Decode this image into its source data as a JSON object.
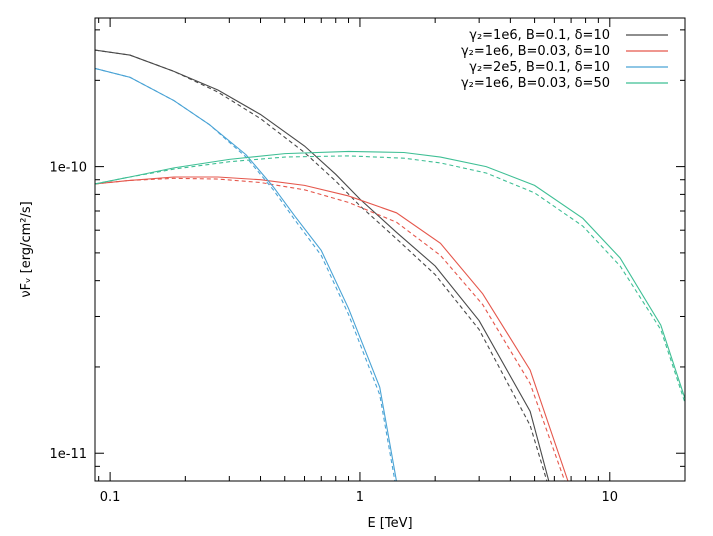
{
  "chart_data": {
    "type": "line",
    "title": "",
    "xlabel": "E [TeV]",
    "ylabel": "νFᵥ [erg/cm²/s]",
    "x_scale": "log",
    "y_scale": "log",
    "xlim": [
      0.087,
      20
    ],
    "ylim": [
      8e-12,
      3.3e-10
    ],
    "x_ticks": [
      {
        "value": 0.1,
        "label": "0.1"
      },
      {
        "value": 1,
        "label": "1"
      },
      {
        "value": 10,
        "label": "10"
      }
    ],
    "y_ticks": [
      {
        "value": 1e-10,
        "label": "1e-10"
      },
      {
        "value": 1e-11,
        "label": "1e-11"
      }
    ],
    "grid": false,
    "legend_position": "top-right",
    "series": [
      {
        "name": "γ₂=1e6, B=0.1, δ=10",
        "color": "#4a4a4a",
        "solid": [
          [
            0.087,
            2.55e-10
          ],
          [
            0.12,
            2.45e-10
          ],
          [
            0.18,
            2.15e-10
          ],
          [
            0.27,
            1.85e-10
          ],
          [
            0.4,
            1.52e-10
          ],
          [
            0.6,
            1.18e-10
          ],
          [
            0.8,
            9.4e-11
          ],
          [
            1.0,
            7.7e-11
          ],
          [
            1.4,
            5.9e-11
          ],
          [
            2.0,
            4.5e-11
          ],
          [
            3.0,
            2.9e-11
          ],
          [
            4.8,
            1.4e-11
          ],
          [
            5.7,
            8e-12
          ]
        ],
        "dashed": [
          [
            0.087,
            2.55e-10
          ],
          [
            0.12,
            2.45e-10
          ],
          [
            0.18,
            2.15e-10
          ],
          [
            0.27,
            1.82e-10
          ],
          [
            0.4,
            1.47e-10
          ],
          [
            0.6,
            1.12e-10
          ],
          [
            0.8,
            8.9e-11
          ],
          [
            1.0,
            7.3e-11
          ],
          [
            1.4,
            5.6e-11
          ],
          [
            2.0,
            4.2e-11
          ],
          [
            3.0,
            2.7e-11
          ],
          [
            4.8,
            1.25e-11
          ],
          [
            5.6,
            8e-12
          ]
        ]
      },
      {
        "name": "γ₂=1e6, B=0.03, δ=10",
        "color": "#e5574c",
        "solid": [
          [
            0.087,
            8.7e-11
          ],
          [
            0.12,
            8.95e-11
          ],
          [
            0.18,
            9.2e-11
          ],
          [
            0.27,
            9.2e-11
          ],
          [
            0.4,
            9e-11
          ],
          [
            0.6,
            8.6e-11
          ],
          [
            0.9,
            7.9e-11
          ],
          [
            1.4,
            6.9e-11
          ],
          [
            2.1,
            5.4e-11
          ],
          [
            3.1,
            3.6e-11
          ],
          [
            4.8,
            1.95e-11
          ],
          [
            6.8,
            8e-12
          ]
        ],
        "dashed": [
          [
            0.087,
            8.7e-11
          ],
          [
            0.12,
            8.95e-11
          ],
          [
            0.18,
            9.1e-11
          ],
          [
            0.27,
            9.05e-11
          ],
          [
            0.4,
            8.8e-11
          ],
          [
            0.6,
            8.3e-11
          ],
          [
            0.9,
            7.5e-11
          ],
          [
            1.4,
            6.4e-11
          ],
          [
            2.1,
            4.9e-11
          ],
          [
            3.1,
            3.3e-11
          ],
          [
            4.8,
            1.75e-11
          ],
          [
            6.6,
            8e-12
          ]
        ]
      },
      {
        "name": "γ₂=2e5, B=0.1, δ=10",
        "color": "#4aa3d5",
        "solid": [
          [
            0.087,
            2.2e-10
          ],
          [
            0.12,
            2.05e-10
          ],
          [
            0.18,
            1.7e-10
          ],
          [
            0.25,
            1.4e-10
          ],
          [
            0.35,
            1.1e-10
          ],
          [
            0.45,
            8.5e-11
          ],
          [
            0.55,
            6.7e-11
          ],
          [
            0.7,
            5.1e-11
          ],
          [
            0.9,
            3.2e-11
          ],
          [
            1.2,
            1.7e-11
          ],
          [
            1.4,
            8e-12
          ]
        ],
        "dashed": [
          [
            0.087,
            2.2e-10
          ],
          [
            0.12,
            2.05e-10
          ],
          [
            0.18,
            1.7e-10
          ],
          [
            0.25,
            1.4e-10
          ],
          [
            0.35,
            1.08e-10
          ],
          [
            0.45,
            8.3e-11
          ],
          [
            0.55,
            6.5e-11
          ],
          [
            0.7,
            4.9e-11
          ],
          [
            0.9,
            3.05e-11
          ],
          [
            1.2,
            1.6e-11
          ],
          [
            1.38,
            8e-12
          ]
        ]
      },
      {
        "name": "γ₂=1e6, B=0.03, δ=50",
        "color": "#3fbf95",
        "solid": [
          [
            0.087,
            8.7e-11
          ],
          [
            0.12,
            9.2e-11
          ],
          [
            0.18,
            9.9e-11
          ],
          [
            0.3,
            1.06e-10
          ],
          [
            0.5,
            1.11e-10
          ],
          [
            0.9,
            1.13e-10
          ],
          [
            1.5,
            1.12e-10
          ],
          [
            2.1,
            1.08e-10
          ],
          [
            3.2,
            1e-10
          ],
          [
            5.0,
            8.6e-11
          ],
          [
            7.8,
            6.6e-11
          ],
          [
            11.0,
            4.8e-11
          ],
          [
            16.0,
            2.8e-11
          ],
          [
            20.0,
            1.55e-11
          ]
        ],
        "dashed": [
          [
            0.087,
            8.7e-11
          ],
          [
            0.12,
            9.2e-11
          ],
          [
            0.18,
            9.8e-11
          ],
          [
            0.3,
            1.04e-10
          ],
          [
            0.5,
            1.08e-10
          ],
          [
            0.9,
            1.09e-10
          ],
          [
            1.5,
            1.07e-10
          ],
          [
            2.1,
            1.03e-10
          ],
          [
            3.2,
            9.5e-11
          ],
          [
            5.0,
            8.1e-11
          ],
          [
            7.8,
            6.2e-11
          ],
          [
            11.0,
            4.5e-11
          ],
          [
            16.0,
            2.7e-11
          ],
          [
            20.0,
            1.5e-11
          ]
        ]
      }
    ]
  }
}
